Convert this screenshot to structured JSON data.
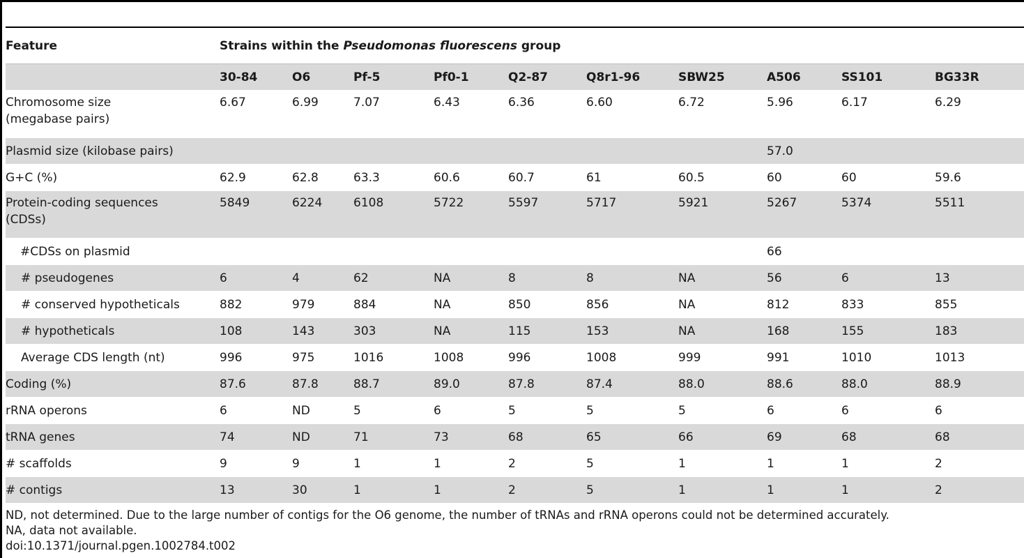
{
  "table": {
    "feature_header": "Feature",
    "group_header_prefix": "Strains within the ",
    "group_header_italic": "Pseudomonas fluorescens",
    "group_header_suffix": " group",
    "strains": [
      "30-84",
      "O6",
      "Pf-5",
      "Pf0-1",
      "Q2-87",
      "Q8r1-96",
      "SBW25",
      "A506",
      "SS101",
      "BG33R"
    ],
    "rows": [
      {
        "label_line1": "Chromosome size",
        "label_line2": "(megabase pairs)",
        "values": [
          "6.67",
          "6.99",
          "7.07",
          "6.43",
          "6.36",
          "6.60",
          "6.72",
          "5.96",
          "6.17",
          "6.29"
        ]
      },
      {
        "label_line1": "Plasmid size (kilobase pairs)",
        "values": [
          "",
          "",
          "",
          "",
          "",
          "",
          "",
          "57.0",
          "",
          ""
        ]
      },
      {
        "label_line1": "G+C (%)",
        "values": [
          "62.9",
          "62.8",
          "63.3",
          "60.6",
          "60.7",
          "61",
          "60.5",
          "60",
          "60",
          "59.6"
        ]
      },
      {
        "label_line1": "Protein-coding sequences",
        "label_line2": "(CDSs)",
        "values": [
          "5849",
          "6224",
          "6108",
          "5722",
          "5597",
          "5717",
          "5921",
          "5267",
          "5374",
          "5511"
        ]
      },
      {
        "label_line1": "#CDSs on plasmid",
        "values": [
          "",
          "",
          "",
          "",
          "",
          "",
          "",
          "66",
          "",
          ""
        ]
      },
      {
        "label_line1": "# pseudogenes",
        "values": [
          "6",
          "4",
          "62",
          "NA",
          "8",
          "8",
          "NA",
          "56",
          "6",
          "13"
        ]
      },
      {
        "label_line1": "# conserved hypotheticals",
        "values": [
          "882",
          "979",
          "884",
          "NA",
          "850",
          "856",
          "NA",
          "812",
          "833",
          "855"
        ]
      },
      {
        "label_line1": "# hypotheticals",
        "values": [
          "108",
          "143",
          "303",
          "NA",
          "115",
          "153",
          "NA",
          "168",
          "155",
          "183"
        ]
      },
      {
        "label_line1": "Average CDS length (nt)",
        "values": [
          "996",
          "975",
          "1016",
          "1008",
          "996",
          "1008",
          "999",
          "991",
          "1010",
          "1013"
        ]
      },
      {
        "label_line1": "Coding (%)",
        "values": [
          "87.6",
          "87.8",
          "88.7",
          "89.0",
          "87.8",
          "87.4",
          "88.0",
          "88.6",
          "88.0",
          "88.9"
        ]
      },
      {
        "label_line1": "rRNA operons",
        "values": [
          "6",
          "ND",
          "5",
          "6",
          "5",
          "5",
          "5",
          "6",
          "6",
          "6"
        ]
      },
      {
        "label_line1": "tRNA genes",
        "values": [
          "74",
          "ND",
          "71",
          "73",
          "68",
          "65",
          "66",
          "69",
          "68",
          "68"
        ]
      },
      {
        "label_line1": "# scaffolds",
        "values": [
          "9",
          "9",
          "1",
          "1",
          "2",
          "5",
          "1",
          "1",
          "1",
          "2"
        ]
      },
      {
        "label_line1": "# contigs",
        "values": [
          "13",
          "30",
          "1",
          "1",
          "2",
          "5",
          "1",
          "1",
          "1",
          "2"
        ]
      }
    ]
  },
  "footnotes": {
    "nd_note": "ND, not determined. Due to the large number of contigs for the O6 genome, the number of tRNAs and rRNA operons could not be determined accurately.",
    "na_note": "NA, data not available.",
    "doi": "doi:10.1371/journal.pgen.1002784.t002"
  }
}
